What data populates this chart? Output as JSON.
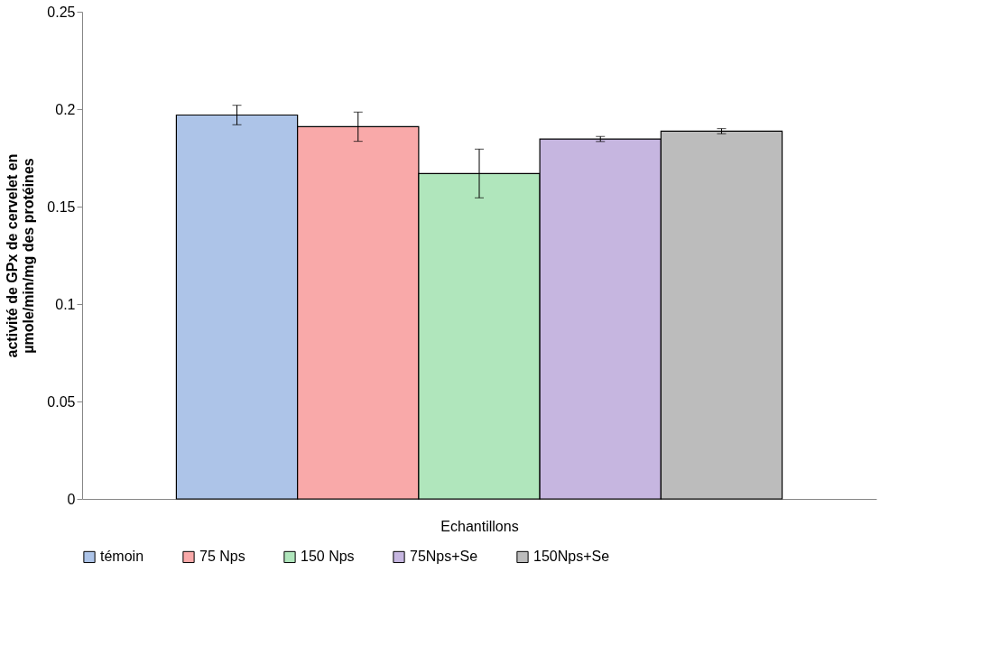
{
  "chart_data": {
    "type": "bar",
    "xlabel": "Echantillons",
    "ylabel": "activité de GPx de cervelet en\nµmole/min/mg des protéines",
    "categories": [
      null
    ],
    "series": [
      {
        "name": "témoin",
        "color": "#adc4e8",
        "values": [
          0.197
        ],
        "errors": [
          0.005
        ]
      },
      {
        "name": "75 Nps",
        "color": "#f9a9a9",
        "values": [
          0.191
        ],
        "errors": [
          0.0075
        ]
      },
      {
        "name": "150 Nps",
        "color": "#b0e6bc",
        "values": [
          0.167
        ],
        "errors": [
          0.0125
        ]
      },
      {
        "name": "75Nps+Se",
        "color": "#c6b6e0",
        "values": [
          0.1847
        ],
        "errors": [
          0.0013
        ]
      },
      {
        "name": "150Nps+Se",
        "color": "#bcbcbc",
        "values": [
          0.1887
        ],
        "errors": [
          0.0013
        ]
      }
    ],
    "ylim": [
      0,
      0.25
    ],
    "yticks": [
      0,
      0.05,
      0.1,
      0.15,
      0.2,
      0.25
    ],
    "grid": false,
    "legend": "bottom"
  }
}
